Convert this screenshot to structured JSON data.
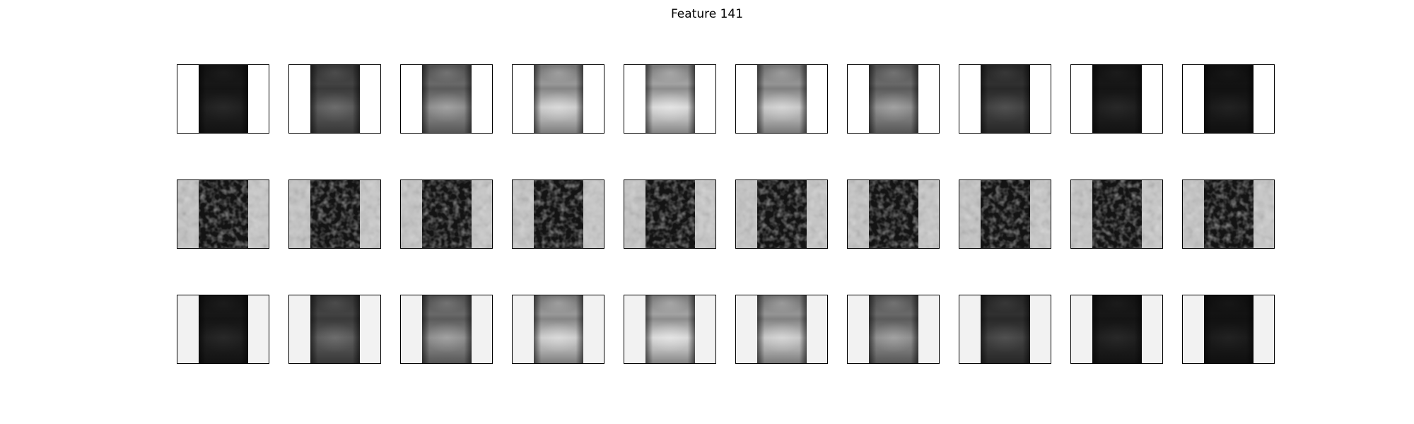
{
  "figure": {
    "title": "Feature 141"
  },
  "rows": [
    {
      "name": "top",
      "background": "#ffffff",
      "panels": [
        0.12,
        0.35,
        0.55,
        0.8,
        0.85,
        0.78,
        0.55,
        0.25,
        0.12,
        0.1
      ]
    },
    {
      "name": "middle",
      "background": "#b8b8b8",
      "panels": [
        0.15,
        0.15,
        0.15,
        0.15,
        0.15,
        0.15,
        0.15,
        0.15,
        0.15,
        0.15
      ]
    },
    {
      "name": "bottom",
      "background": "#f2f2f2",
      "panels": [
        0.12,
        0.35,
        0.55,
        0.8,
        0.85,
        0.78,
        0.55,
        0.25,
        0.12,
        0.1
      ]
    }
  ]
}
